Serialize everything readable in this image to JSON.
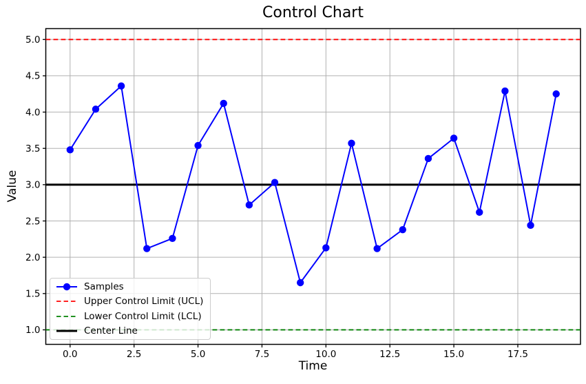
{
  "figure": {
    "title": "Control Chart"
  },
  "chart_data": {
    "type": "line",
    "title": "Control Chart",
    "xlabel": "Time",
    "ylabel": "Value",
    "x": [
      0,
      1,
      2,
      3,
      4,
      5,
      6,
      7,
      8,
      9,
      10,
      11,
      12,
      13,
      14,
      15,
      16,
      17,
      18,
      19
    ],
    "series": [
      {
        "name": "Samples",
        "kind": "line-markers",
        "color": "#0000ff",
        "linewidth": 2,
        "values": [
          3.48,
          4.04,
          4.36,
          2.12,
          2.26,
          3.54,
          4.12,
          2.72,
          3.03,
          1.65,
          2.13,
          3.57,
          2.12,
          2.38,
          3.36,
          3.64,
          2.62,
          4.29,
          2.44,
          4.25
        ]
      },
      {
        "name": "Upper Control Limit (UCL)",
        "kind": "hline",
        "style": "dashed",
        "color": "#ff0000",
        "linewidth": 1.8,
        "value": 5.0
      },
      {
        "name": "Lower Control Limit (LCL)",
        "kind": "hline",
        "style": "dashed",
        "color": "#008000",
        "linewidth": 1.8,
        "value": 1.0
      },
      {
        "name": "Center Line",
        "kind": "hline",
        "style": "solid",
        "color": "#000000",
        "linewidth": 3,
        "value": 3.0
      }
    ],
    "xlim": [
      -0.95,
      19.95
    ],
    "ylim": [
      0.8,
      5.15
    ],
    "xtick_labels": [
      "0.0",
      "2.5",
      "5.0",
      "7.5",
      "10.0",
      "12.5",
      "15.0",
      "17.5"
    ],
    "ytick_labels": [
      "1.0",
      "1.5",
      "2.0",
      "2.5",
      "3.0",
      "3.5",
      "4.0",
      "4.5",
      "5.0"
    ],
    "grid": true,
    "grid_color": "#b0b0b0",
    "spine_color": "#000000",
    "marker_radius": 5.2,
    "legend_position": "lower-left"
  }
}
